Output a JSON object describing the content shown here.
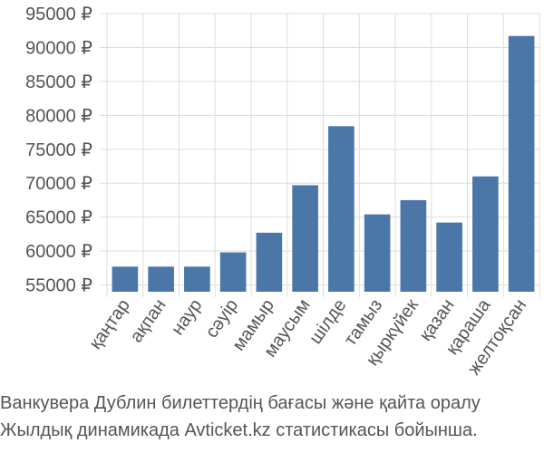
{
  "chart_data": {
    "type": "bar",
    "categories": [
      "қаңтар",
      "ақпан",
      "наур",
      "сәуір",
      "мамыр",
      "маусым",
      "шілде",
      "тамыз",
      "қыркүйек",
      "қазан",
      "қараша",
      "желтоқсан"
    ],
    "values": [
      57700,
      57700,
      57700,
      59800,
      62700,
      69700,
      78400,
      65400,
      67500,
      64200,
      71000,
      91700
    ],
    "ylim": [
      54000,
      95000
    ],
    "yticks": [
      55000,
      60000,
      65000,
      70000,
      75000,
      80000,
      85000,
      90000,
      95000
    ],
    "ytick_labels": [
      "55000 ₽",
      "60000 ₽",
      "65000 ₽",
      "70000 ₽",
      "75000 ₽",
      "80000 ₽",
      "85000 ₽",
      "90000 ₽",
      "95000 ₽"
    ],
    "grid": true,
    "bar_color": "#4a76a8",
    "grid_color": "#dddddd"
  },
  "caption": {
    "line1": "Ванкувера Дублин билеттердің бағасы және қайта оралу",
    "line2": "Жылдық динамикада Avticket.kz статистикасы бойынша."
  }
}
